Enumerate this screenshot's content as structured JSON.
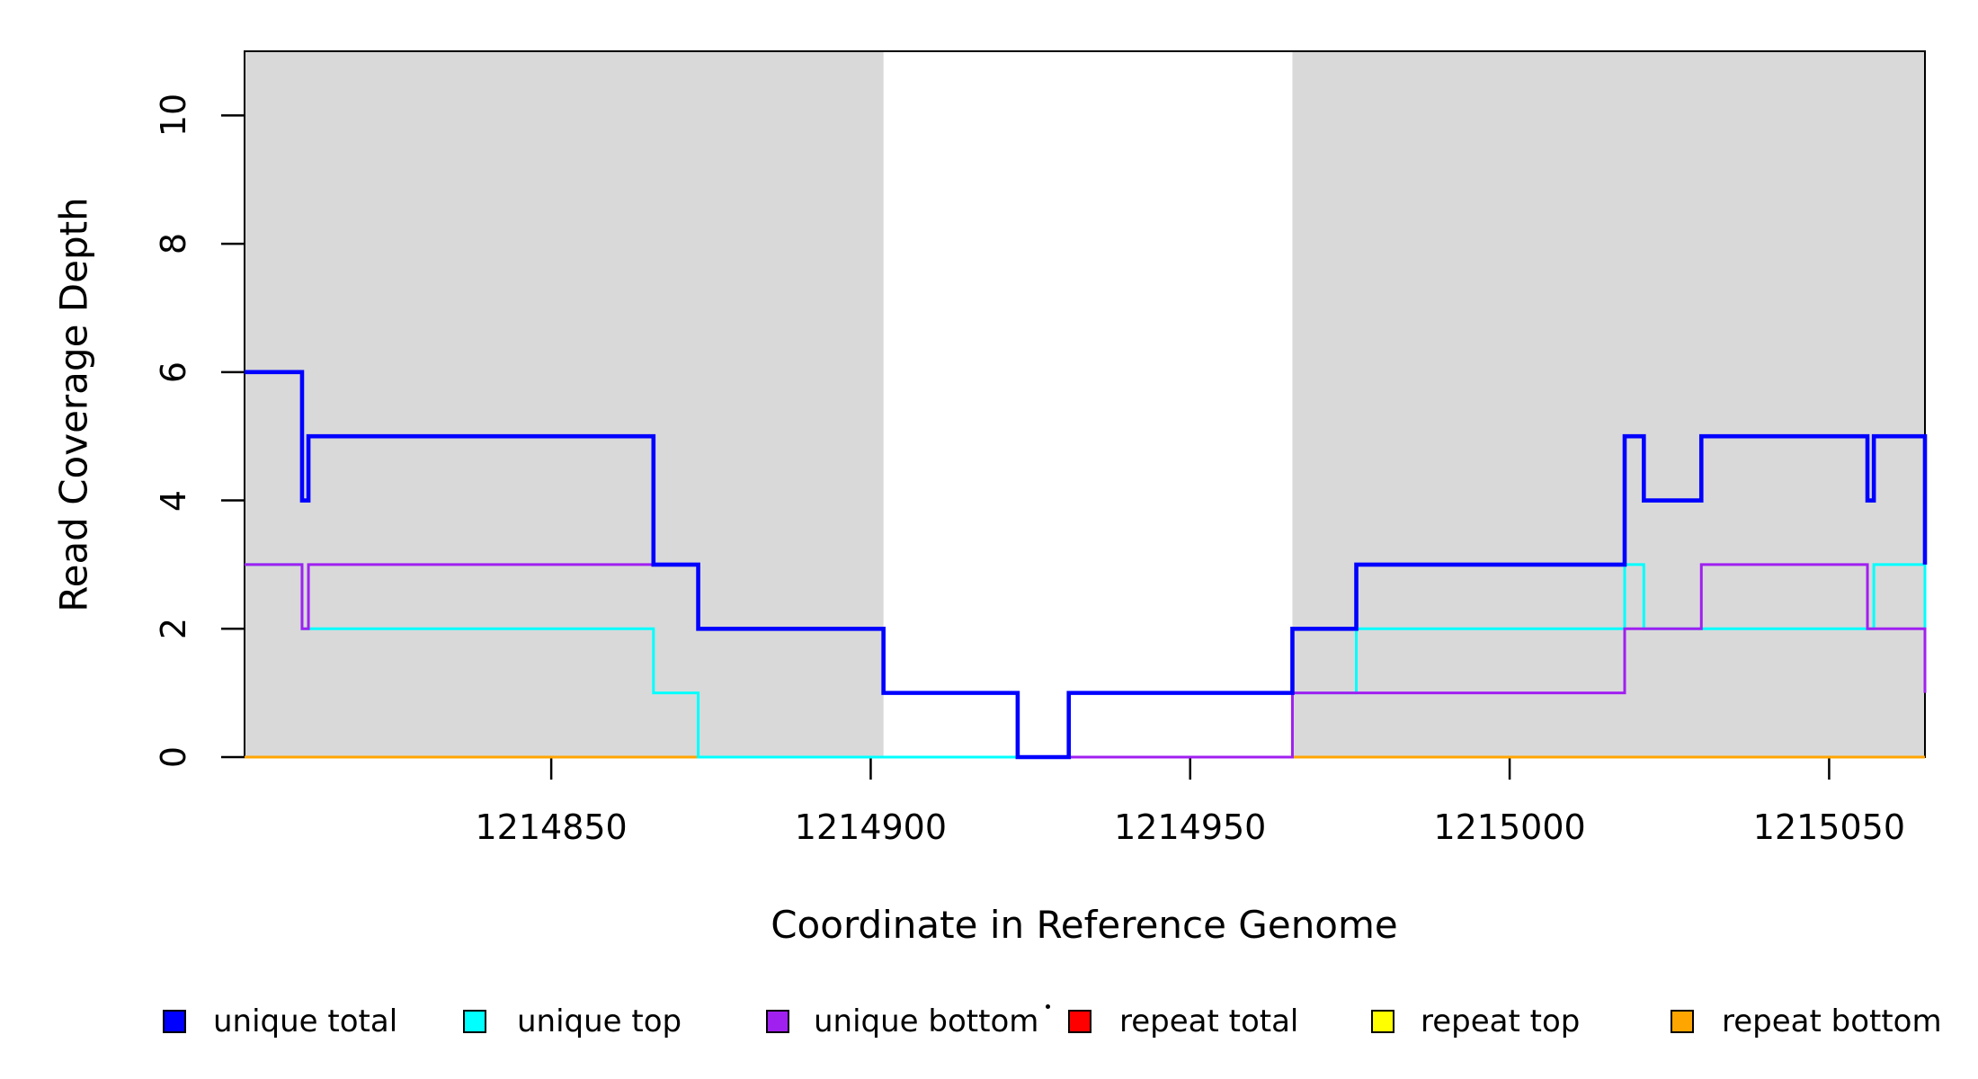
{
  "chart_data": {
    "type": "line",
    "subtype": "step-coverage",
    "title": "",
    "xlabel": "Coordinate in Reference Genome",
    "ylabel": "Read Coverage Depth",
    "xlim": [
      1214802,
      1215065
    ],
    "ylim": [
      0,
      11
    ],
    "x_ticks": [
      1214850,
      1214900,
      1214950,
      1215000,
      1215050
    ],
    "x_tick_labels": [
      "1214850",
      "1214900",
      "1214950",
      "1215000",
      "1215050"
    ],
    "y_ticks": [
      0,
      2,
      4,
      6,
      8,
      10
    ],
    "y_tick_labels": [
      "0",
      "2",
      "4",
      "6",
      "8",
      "10"
    ],
    "grid": false,
    "plot_bg": "#FFFFFF",
    "band_color": "#D9D9D9",
    "box_color": "#000000",
    "shaded_regions": [
      [
        1214802,
        1214902
      ],
      [
        1214966,
        1215065
      ]
    ],
    "series": [
      {
        "name": "repeat top",
        "color": "#FFFF00",
        "line_width": 3,
        "edge_drop": null,
        "segments": [
          [
            1214802,
            1215065,
            0
          ]
        ]
      },
      {
        "name": "repeat total",
        "color": "#FF0000",
        "line_width": 3,
        "edge_drop": null,
        "segments": [
          [
            1214802,
            1215065,
            0
          ]
        ]
      },
      {
        "name": "repeat bottom",
        "color": "#FFA500",
        "line_width": 3,
        "edge_drop": null,
        "segments": [
          [
            1214802,
            1215065,
            0
          ]
        ]
      },
      {
        "name": "unique top",
        "color": "#00FFFF",
        "line_width": 3,
        "edge_drop": 2,
        "segments": [
          [
            1214802,
            1214811,
            3
          ],
          [
            1214811,
            1214866,
            2
          ],
          [
            1214866,
            1214873,
            1
          ],
          [
            1214873,
            1214931,
            0
          ],
          [
            1214931,
            1214976,
            1
          ],
          [
            1214976,
            1215018,
            2
          ],
          [
            1215018,
            1215021,
            3
          ],
          [
            1215021,
            1215057,
            2
          ],
          [
            1215057,
            1215065,
            3
          ]
        ]
      },
      {
        "name": "unique bottom",
        "color": "#A020F0",
        "line_width": 3,
        "edge_drop": 1,
        "segments": [
          [
            1214802,
            1214811,
            3
          ],
          [
            1214811,
            1214812,
            2
          ],
          [
            1214812,
            1214873,
            3
          ],
          [
            1214873,
            1214902,
            2
          ],
          [
            1214902,
            1214923,
            1
          ],
          [
            1214923,
            1214966,
            0
          ],
          [
            1214966,
            1215018,
            1
          ],
          [
            1215018,
            1215030,
            2
          ],
          [
            1215030,
            1215056,
            3
          ],
          [
            1215056,
            1215065,
            2
          ]
        ]
      },
      {
        "name": "unique total",
        "color": "#0000FF",
        "line_width": 4.6,
        "edge_drop": 3,
        "segments": [
          [
            1214802,
            1214811,
            6
          ],
          [
            1214811,
            1214812,
            4
          ],
          [
            1214812,
            1214866,
            5
          ],
          [
            1214866,
            1214873,
            3
          ],
          [
            1214873,
            1214902,
            2
          ],
          [
            1214902,
            1214923,
            1
          ],
          [
            1214923,
            1214931,
            0
          ],
          [
            1214931,
            1214966,
            1
          ],
          [
            1214966,
            1214976,
            2
          ],
          [
            1214976,
            1215018,
            3
          ],
          [
            1215018,
            1215021,
            5
          ],
          [
            1215021,
            1215030,
            4
          ],
          [
            1215030,
            1215056,
            5
          ],
          [
            1215056,
            1215057,
            4
          ],
          [
            1215057,
            1215065,
            5
          ]
        ]
      }
    ]
  },
  "legend": {
    "position": "bottom",
    "items": [
      {
        "label": "unique total",
        "color": "#0000FF"
      },
      {
        "label": "unique top",
        "color": "#00FFFF"
      },
      {
        "label": "unique bottom",
        "color": "#A020F0"
      },
      {
        "label": "repeat total",
        "color": "#FF0000"
      },
      {
        "label": "repeat top",
        "color": "#FFFF00"
      },
      {
        "label": "repeat bottom",
        "color": "#FFA500"
      }
    ]
  }
}
